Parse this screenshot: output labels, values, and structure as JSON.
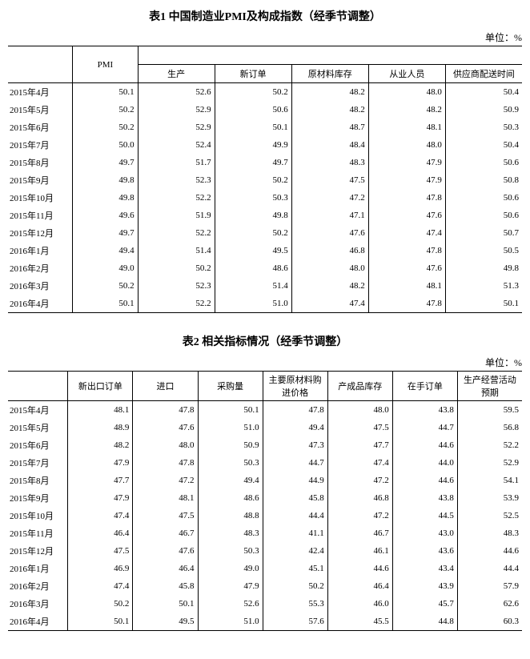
{
  "table1": {
    "title": "表1  中国制造业PMI及构成指数（经季节调整）",
    "unit": "单位：%",
    "header_pmi": "PMI",
    "columns": [
      "生产",
      "新订单",
      "原材料库存",
      "从业人员",
      "供应商配送时间"
    ],
    "rows": [
      {
        "date": "2015年4月",
        "pmi": "50.1",
        "values": [
          "52.6",
          "50.2",
          "48.2",
          "48.0",
          "50.4"
        ]
      },
      {
        "date": "2015年5月",
        "pmi": "50.2",
        "values": [
          "52.9",
          "50.6",
          "48.2",
          "48.2",
          "50.9"
        ]
      },
      {
        "date": "2015年6月",
        "pmi": "50.2",
        "values": [
          "52.9",
          "50.1",
          "48.7",
          "48.1",
          "50.3"
        ]
      },
      {
        "date": "2015年7月",
        "pmi": "50.0",
        "values": [
          "52.4",
          "49.9",
          "48.4",
          "48.0",
          "50.4"
        ]
      },
      {
        "date": "2015年8月",
        "pmi": "49.7",
        "values": [
          "51.7",
          "49.7",
          "48.3",
          "47.9",
          "50.6"
        ]
      },
      {
        "date": "2015年9月",
        "pmi": "49.8",
        "values": [
          "52.3",
          "50.2",
          "47.5",
          "47.9",
          "50.8"
        ]
      },
      {
        "date": "2015年10月",
        "pmi": "49.8",
        "values": [
          "52.2",
          "50.3",
          "47.2",
          "47.8",
          "50.6"
        ]
      },
      {
        "date": "2015年11月",
        "pmi": "49.6",
        "values": [
          "51.9",
          "49.8",
          "47.1",
          "47.6",
          "50.6"
        ]
      },
      {
        "date": "2015年12月",
        "pmi": "49.7",
        "values": [
          "52.2",
          "50.2",
          "47.6",
          "47.4",
          "50.7"
        ]
      },
      {
        "date": "2016年1月",
        "pmi": "49.4",
        "values": [
          "51.4",
          "49.5",
          "46.8",
          "47.8",
          "50.5"
        ]
      },
      {
        "date": "2016年2月",
        "pmi": "49.0",
        "values": [
          "50.2",
          "48.6",
          "48.0",
          "47.6",
          "49.8"
        ]
      },
      {
        "date": "2016年3月",
        "pmi": "50.2",
        "values": [
          "52.3",
          "51.4",
          "48.2",
          "48.1",
          "51.3"
        ]
      },
      {
        "date": "2016年4月",
        "pmi": "50.1",
        "values": [
          "52.2",
          "51.0",
          "47.4",
          "47.8",
          "50.1"
        ]
      }
    ]
  },
  "table2": {
    "title": "表2  相关指标情况（经季节调整）",
    "unit": "单位：%",
    "columns": [
      "新出口订单",
      "进口",
      "采购量",
      "主要原材料购进价格",
      "产成品库存",
      "在手订单",
      "生产经营活动预期"
    ],
    "rows": [
      {
        "date": "2015年4月",
        "values": [
          "48.1",
          "47.8",
          "50.1",
          "47.8",
          "48.0",
          "43.8",
          "59.5"
        ]
      },
      {
        "date": "2015年5月",
        "values": [
          "48.9",
          "47.6",
          "51.0",
          "49.4",
          "47.5",
          "44.7",
          "56.8"
        ]
      },
      {
        "date": "2015年6月",
        "values": [
          "48.2",
          "48.0",
          "50.9",
          "47.3",
          "47.7",
          "44.6",
          "52.2"
        ]
      },
      {
        "date": "2015年7月",
        "values": [
          "47.9",
          "47.8",
          "50.3",
          "44.7",
          "47.4",
          "44.0",
          "52.9"
        ]
      },
      {
        "date": "2015年8月",
        "values": [
          "47.7",
          "47.2",
          "49.4",
          "44.9",
          "47.2",
          "44.6",
          "54.1"
        ]
      },
      {
        "date": "2015年9月",
        "values": [
          "47.9",
          "48.1",
          "48.6",
          "45.8",
          "46.8",
          "43.8",
          "53.9"
        ]
      },
      {
        "date": "2015年10月",
        "values": [
          "47.4",
          "47.5",
          "48.8",
          "44.4",
          "47.2",
          "44.5",
          "52.5"
        ]
      },
      {
        "date": "2015年11月",
        "values": [
          "46.4",
          "46.7",
          "48.3",
          "41.1",
          "46.7",
          "43.0",
          "48.3"
        ]
      },
      {
        "date": "2015年12月",
        "values": [
          "47.5",
          "47.6",
          "50.3",
          "42.4",
          "46.1",
          "43.6",
          "44.6"
        ]
      },
      {
        "date": "2016年1月",
        "values": [
          "46.9",
          "46.4",
          "49.0",
          "45.1",
          "44.6",
          "43.4",
          "44.4"
        ]
      },
      {
        "date": "2016年2月",
        "values": [
          "47.4",
          "45.8",
          "47.9",
          "50.2",
          "46.4",
          "43.9",
          "57.9"
        ]
      },
      {
        "date": "2016年3月",
        "values": [
          "50.2",
          "50.1",
          "52.6",
          "55.3",
          "46.0",
          "45.7",
          "62.6"
        ]
      },
      {
        "date": "2016年4月",
        "values": [
          "50.1",
          "49.5",
          "51.0",
          "57.6",
          "45.5",
          "44.8",
          "60.3"
        ]
      }
    ]
  }
}
